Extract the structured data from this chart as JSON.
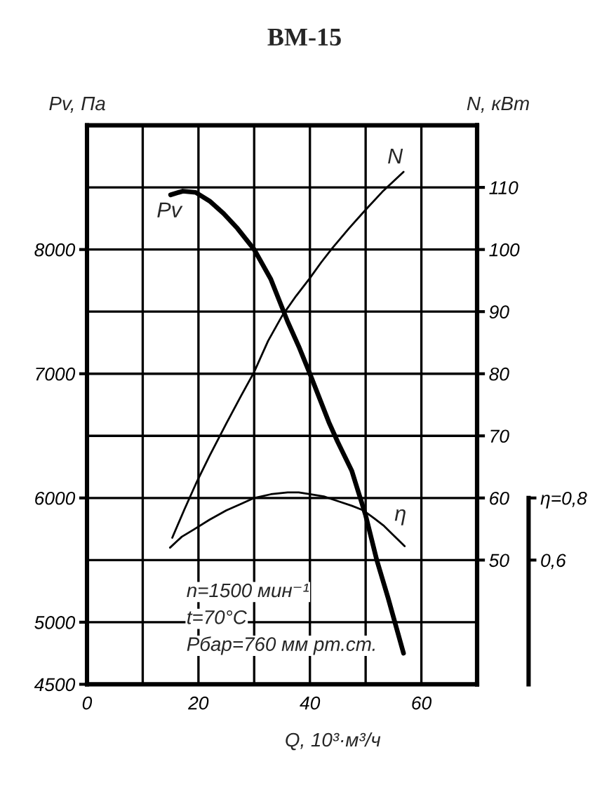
{
  "chart_data": {
    "type": "line",
    "title": "ВМ-15",
    "xlabel": "Q, 10³·м³/ч",
    "ylabel": "Pv, Па",
    "y2label": "N, кВт",
    "xlim": [
      0,
      70
    ],
    "xticks": [
      0,
      {
        "value": 10,
        "label": null
      },
      20,
      {
        "value": 30,
        "label": null
      },
      40,
      {
        "value": 50,
        "label": null
      },
      60,
      {
        "value": 70,
        "label": null
      }
    ],
    "ylim": [
      4500,
      9000
    ],
    "yticks": [
      4500,
      5000,
      {
        "value": 5500,
        "label": null
      },
      6000,
      {
        "value": 6500,
        "label": null
      },
      7000,
      {
        "value": 7500,
        "label": null
      },
      8000,
      {
        "value": 8500,
        "label": null
      }
    ],
    "y2lim": [
      30,
      120
    ],
    "y2ticks": [
      50,
      60,
      70,
      80,
      90,
      100,
      110
    ],
    "y3lim": [
      0.2,
      2.0
    ],
    "y3ticks": [
      {
        "value": 0.6,
        "label": "0,6"
      },
      {
        "value": 0.8,
        "label": "η=0,8"
      }
    ],
    "grid": true,
    "series": [
      {
        "name": "Pv",
        "color": "#000000",
        "x": [
          15,
          17.2,
          19.5,
          22,
          24.5,
          27,
          30,
          33,
          36,
          38,
          40,
          43.4,
          45,
          47.5,
          50,
          52,
          54,
          56.8
        ],
        "values": [
          8440,
          8470,
          8460,
          8390,
          8290,
          8170,
          8000,
          7760,
          7420,
          7220,
          7000,
          6610,
          6450,
          6220,
          5860,
          5500,
          5200,
          4750
        ]
      },
      {
        "name": "N",
        "color": "#000000",
        "axis": "y2",
        "x": [
          15.3,
          17.5,
          19.7,
          22,
          25,
          27.5,
          30,
          32.5,
          35,
          37.5,
          40,
          42,
          44,
          47,
          50,
          53,
          56.8
        ],
        "values": [
          53.6,
          58.2,
          62.6,
          66.8,
          72,
          76.2,
          80.3,
          85.3,
          89.3,
          92.5,
          95.4,
          97.9,
          100.2,
          103.4,
          106.4,
          109.3,
          112.5
        ]
      },
      {
        "name": "η",
        "color": "#000000",
        "axis": "y3",
        "x": [
          14.9,
          17,
          19.3,
          22,
          25,
          27.5,
          30,
          33,
          36,
          38,
          40,
          42.5,
          45,
          47.5,
          49.6,
          51.5,
          53.3,
          55,
          57
        ],
        "values": [
          0.64,
          0.675,
          0.7,
          0.73,
          0.76,
          0.78,
          0.8,
          0.812,
          0.818,
          0.818,
          0.812,
          0.805,
          0.79,
          0.775,
          0.76,
          0.735,
          0.71,
          0.68,
          0.645
        ]
      }
    ],
    "annotations": [
      "n=1500 мин⁻¹",
      "t=70°C",
      "Pбар=760 мм рт.ст."
    ]
  }
}
